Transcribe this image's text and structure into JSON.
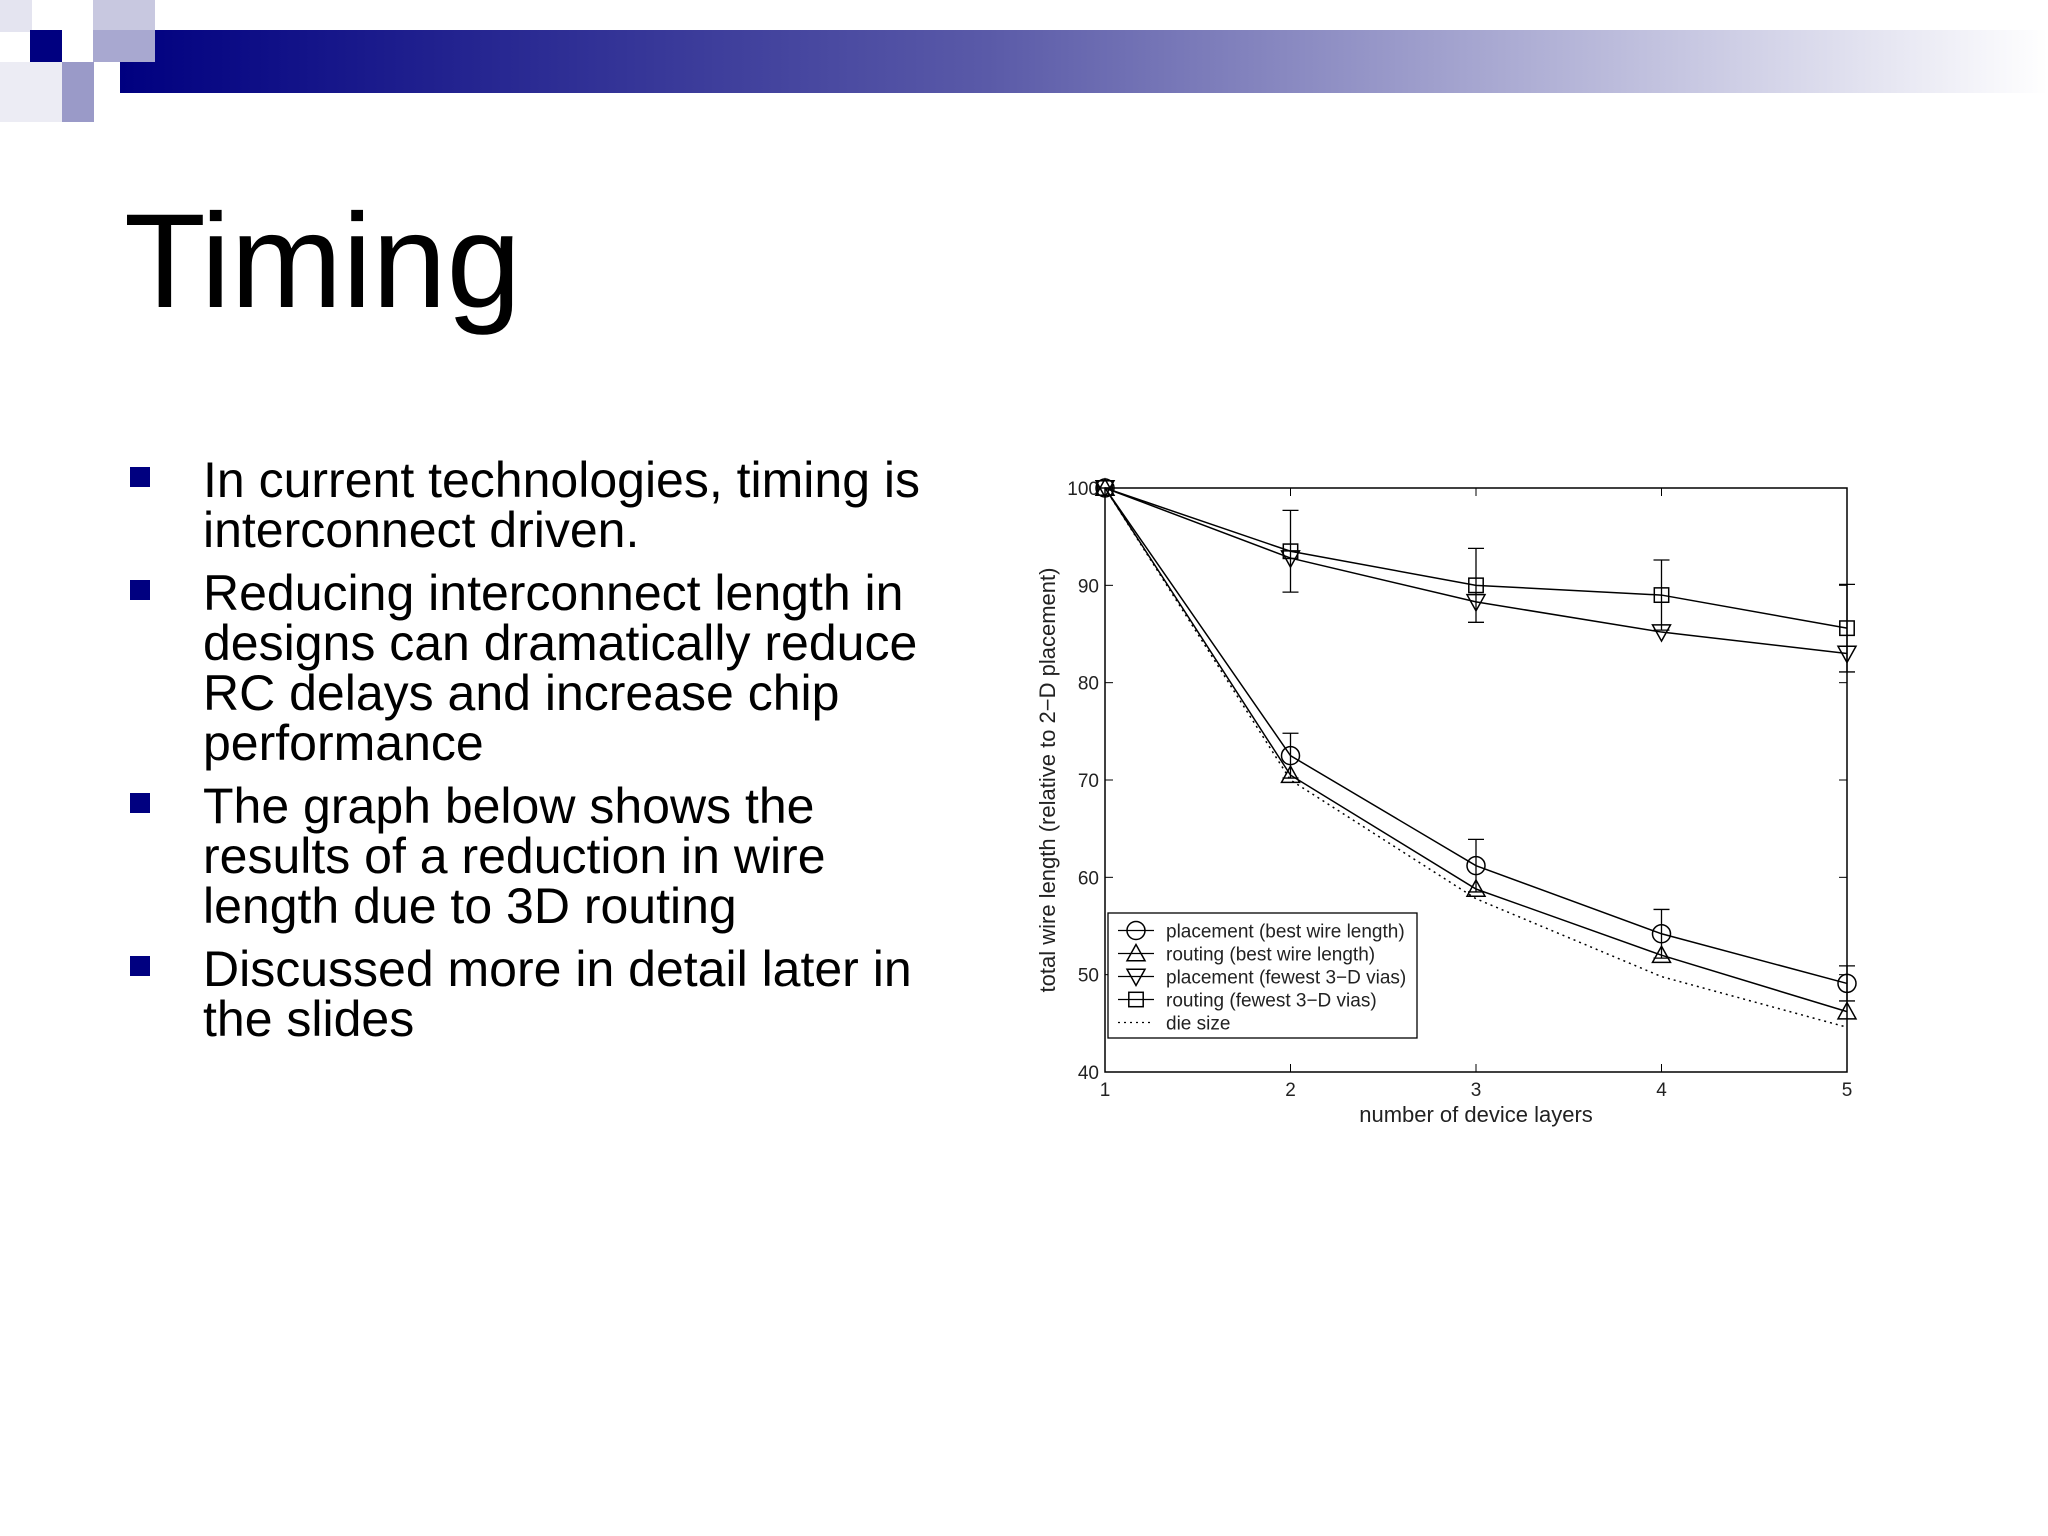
{
  "title": "Timing",
  "bullets": [
    "In current technologies, timing is interconnect driven.",
    "Reducing interconnect length in designs can dramatically reduce RC delays and increase chip performance",
    "The graph below shows the results of a reduction in wire length due to 3D routing",
    "Discussed more in detail later in the slides"
  ],
  "chart_data": {
    "type": "line",
    "x_label": "number of device layers",
    "y_label": "total wire length (relative to 2−D placement)",
    "x": [
      1,
      2,
      3,
      4,
      5
    ],
    "xlim": [
      1,
      5
    ],
    "xticks": [
      1,
      2,
      3,
      4,
      5
    ],
    "ylim": [
      40,
      100
    ],
    "yticks": [
      40,
      50,
      60,
      70,
      80,
      90,
      100
    ],
    "legend": "lower left",
    "series": [
      {
        "name": "placement (best wire length)",
        "color": "#000000",
        "marker": "circle",
        "line_style": "solid",
        "values": [
          100,
          72.5,
          61.2,
          54.2,
          49.1
        ],
        "errors": [
          0,
          2.3,
          2.7,
          2.5,
          1.8
        ]
      },
      {
        "name": "routing (best wire length)",
        "color": "#000000",
        "marker": "triangle",
        "line_style": "solid",
        "values": [
          100,
          70.5,
          58.8,
          52,
          46.2
        ]
      },
      {
        "name": "placement (fewest 3−D vias)",
        "color": "#000000",
        "marker": "triangle-down",
        "line_style": "solid",
        "values": [
          100,
          92.8,
          88.3,
          85.2,
          83
        ]
      },
      {
        "name": "routing (fewest 3−D vias)",
        "color": "#000000",
        "marker": "square",
        "line_style": "solid",
        "values": [
          100,
          93.5,
          90,
          89,
          85.6
        ],
        "errors": [
          0,
          4.2,
          3.8,
          3.6,
          4.5
        ]
      },
      {
        "name": "die size",
        "color": "#000000",
        "marker": "none",
        "line_style": "dotted",
        "values": [
          100,
          70,
          57.8,
          49.8,
          44.6
        ]
      }
    ]
  }
}
